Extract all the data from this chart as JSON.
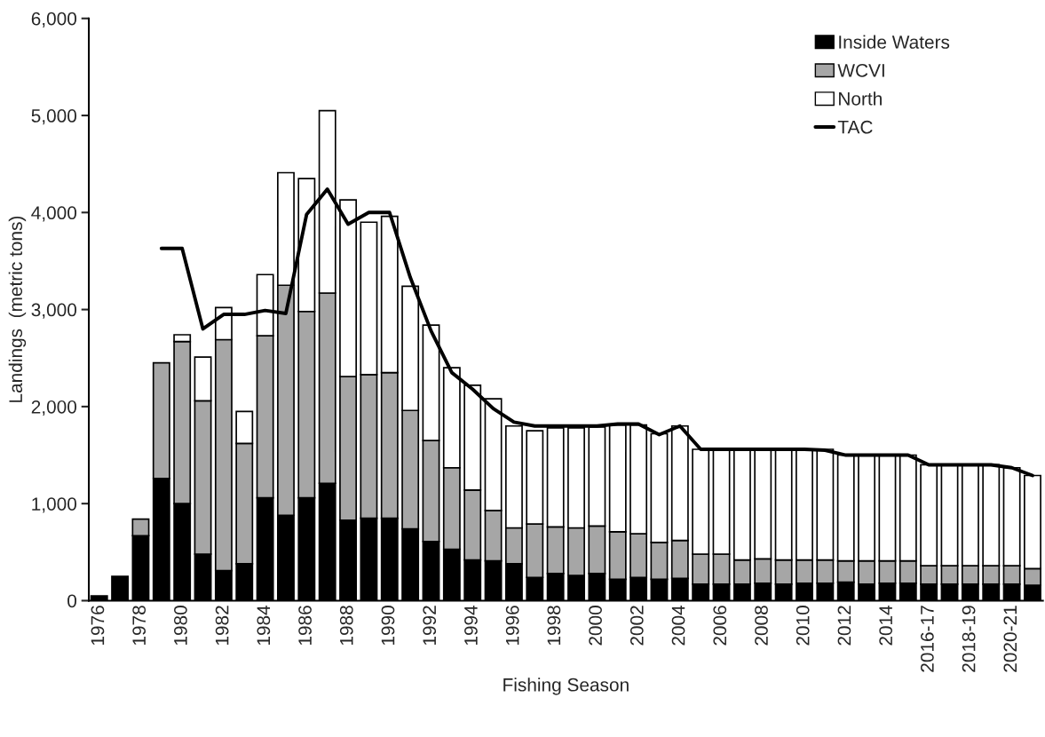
{
  "chart_data": {
    "type": "bar",
    "stacked": true,
    "xlabel": "Fishing Season",
    "ylabel": "Landings  (metric tons)",
    "categories": [
      "1976",
      null,
      "1978",
      null,
      "1980",
      null,
      "1982",
      null,
      "1984",
      null,
      "1986",
      null,
      "1988",
      null,
      "1990",
      null,
      "1992",
      null,
      "1994",
      null,
      "1996",
      null,
      "1998",
      null,
      "2000",
      null,
      "2002",
      null,
      "2004",
      null,
      "2006",
      null,
      "2008",
      null,
      "2010",
      null,
      "2012",
      null,
      "2014",
      null,
      "2016-17",
      null,
      "2018-19",
      null,
      "2020-21",
      null
    ],
    "series": [
      {
        "name": "Inside Waters",
        "color": "#000000",
        "values": [
          50,
          250,
          670,
          1260,
          1000,
          480,
          310,
          380,
          1060,
          880,
          1060,
          1210,
          830,
          850,
          850,
          740,
          610,
          530,
          420,
          410,
          380,
          240,
          280,
          260,
          280,
          220,
          240,
          220,
          230,
          170,
          170,
          170,
          180,
          170,
          180,
          180,
          190,
          170,
          180,
          180,
          170,
          170,
          170,
          170,
          170,
          160
        ]
      },
      {
        "name": "WCVI",
        "color": "#a6a6a6",
        "values": [
          null,
          null,
          170,
          1190,
          1670,
          1580,
          2380,
          1240,
          1670,
          2370,
          1920,
          1960,
          1480,
          1480,
          1500,
          1220,
          1040,
          840,
          720,
          520,
          370,
          550,
          480,
          490,
          490,
          490,
          450,
          380,
          390,
          310,
          310,
          250,
          250,
          250,
          240,
          240,
          220,
          240,
          230,
          230,
          190,
          190,
          190,
          190,
          190,
          170
        ]
      },
      {
        "name": "North",
        "color": "#ffffff",
        "values": [
          null,
          null,
          null,
          null,
          70,
          450,
          330,
          330,
          630,
          1160,
          1370,
          1880,
          1820,
          1570,
          1610,
          1280,
          1190,
          1030,
          1080,
          1150,
          1050,
          960,
          1020,
          1030,
          1020,
          1100,
          1120,
          1120,
          1180,
          1080,
          1080,
          1140,
          1130,
          1140,
          1140,
          1140,
          1090,
          1090,
          1090,
          1090,
          1040,
          1040,
          1040,
          1040,
          1010,
          960
        ]
      },
      {
        "name": "TAC",
        "type": "line",
        "color": "#000000",
        "values": [
          null,
          null,
          null,
          3630,
          3630,
          2800,
          2950,
          2950,
          2990,
          2960,
          3980,
          4240,
          3880,
          4000,
          4000,
          3330,
          2780,
          2350,
          2180,
          1980,
          1840,
          1800,
          1800,
          1800,
          1800,
          1820,
          1820,
          1710,
          1800,
          1560,
          1560,
          1560,
          1560,
          1560,
          1560,
          1550,
          1500,
          1500,
          1500,
          1500,
          1400,
          1400,
          1400,
          1400,
          1370,
          1290
        ]
      }
    ],
    "ylim": [
      0,
      6000
    ],
    "yticks": [
      0,
      {
        "value": 1000,
        "label": "1,000"
      },
      {
        "value": 2000,
        "label": "2,000"
      },
      {
        "value": 3000,
        "label": "3,000"
      },
      {
        "value": 4000,
        "label": "4,000"
      },
      {
        "value": 5000,
        "label": "5,000"
      },
      {
        "value": 6000,
        "label": "6,000"
      }
    ],
    "legend": "top right",
    "grid": false
  }
}
